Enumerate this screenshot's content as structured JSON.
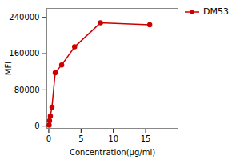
{
  "chart_data": {
    "type": "line",
    "x": [
      0.0625,
      0.125,
      0.25,
      0.5,
      1.0,
      2.0,
      4.0,
      8.0,
      15.625
    ],
    "series": [
      {
        "name": "DM53",
        "color": "#CC0000",
        "marker": "circle",
        "values": [
          2000,
          12000,
          22000,
          42000,
          118000,
          135000,
          175000,
          228000,
          224000
        ]
      }
    ],
    "xlabel": "Concentration(μg/ml)",
    "ylabel": "MFI",
    "xlim": [
      -0.3,
      20
    ],
    "ylim": [
      -5000,
      260000
    ],
    "xticks": [
      0,
      5,
      10,
      15
    ],
    "yticks": [
      0,
      80000,
      160000,
      240000
    ],
    "legend": "right"
  }
}
